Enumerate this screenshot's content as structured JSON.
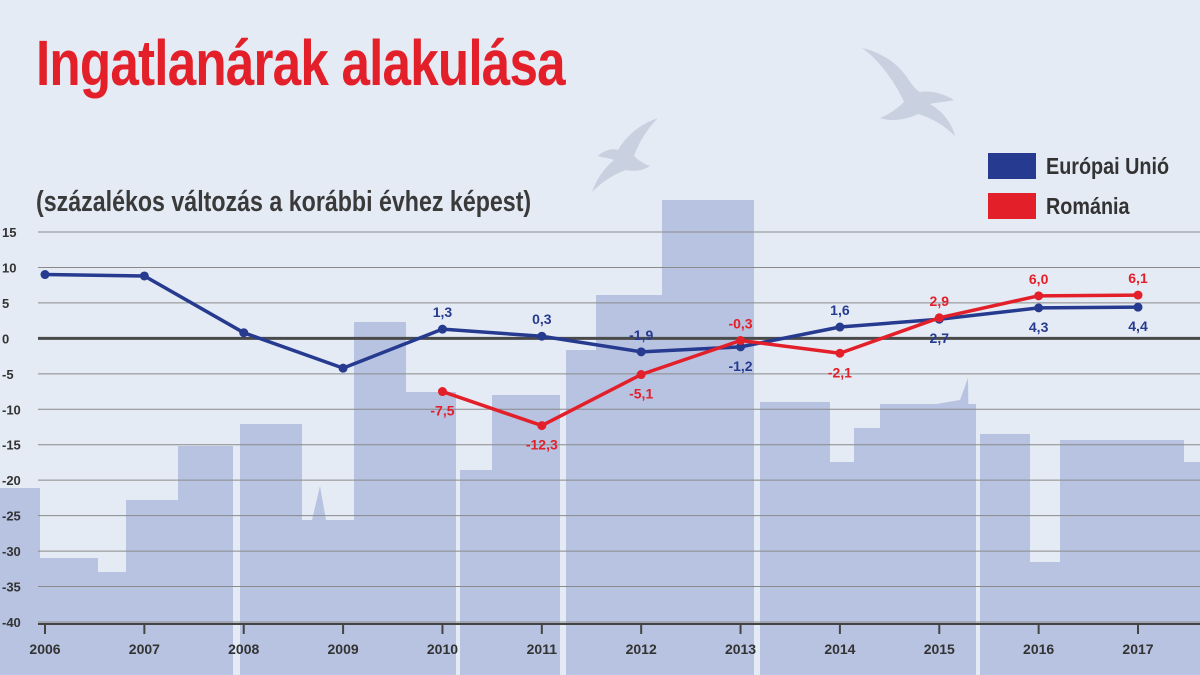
{
  "header": {
    "title": "Ingatlanárak alakulása",
    "subtitle": "(százalékos változás a korábbi évhez képest)"
  },
  "colors": {
    "background": "#e4ebf5",
    "skyline": "#b8c3e2",
    "eu": "#263a8f",
    "ro": "#e3202a",
    "zero_line": "#4a4a4a",
    "grid": "#8a8a8a"
  },
  "chart_data": {
    "type": "line",
    "title": "Ingatlanárak alakulása",
    "subtitle": "(százalékos változás a korábbi évhez képest)",
    "xlabel": "",
    "ylabel": "",
    "categories": [
      "2006",
      "2007",
      "2008",
      "2009",
      "2010",
      "2011",
      "2012",
      "2013",
      "2014",
      "2015",
      "2016",
      "2017"
    ],
    "ylim": [
      -40,
      15
    ],
    "yticks": [
      15,
      10,
      5,
      0,
      -5,
      -10,
      -15,
      -20,
      -25,
      -30,
      -35,
      -40
    ],
    "grid": true,
    "legend_position": "top-right",
    "series": [
      {
        "name": "Európai Unió",
        "color": "#263a8f",
        "values": [
          9.0,
          8.8,
          0.8,
          -4.2,
          1.3,
          0.3,
          -1.9,
          -1.2,
          1.6,
          2.7,
          4.3,
          4.4
        ],
        "labels": [
          null,
          null,
          null,
          null,
          "1,3",
          "0,3",
          "-1,9",
          "-1,2",
          "1,6",
          "2,7",
          "4,3",
          "4,4"
        ]
      },
      {
        "name": "Románia",
        "color": "#e3202a",
        "values": [
          null,
          null,
          null,
          null,
          -7.5,
          -12.3,
          -5.1,
          -0.3,
          -2.1,
          2.9,
          6.0,
          6.1
        ],
        "labels": [
          null,
          null,
          null,
          null,
          "-7,5",
          "-12,3",
          "-5,1",
          "-0,3",
          "-2,1",
          "2,9",
          "6,0",
          "6,1"
        ]
      }
    ]
  }
}
